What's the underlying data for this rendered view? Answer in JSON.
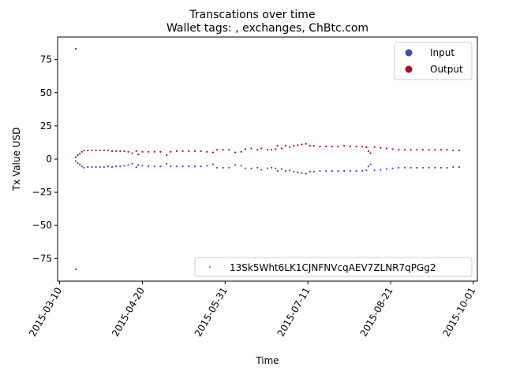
{
  "chart_data": {
    "type": "scatter",
    "title": "Transcations over time",
    "subtitle": "Wallet tags: , exchanges, ChBtc.com",
    "xlabel": "Time",
    "ylabel": "Tx Value USD",
    "xlim": [
      "2015-03-09",
      "2015-10-03"
    ],
    "ylim": [
      -92,
      92
    ],
    "x_ticks": [
      "2015-03-10",
      "2015-04-20",
      "2015-05-31",
      "2015-07-11",
      "2015-08-21",
      "2015-10-01"
    ],
    "y_ticks": [
      75,
      50,
      25,
      0,
      -25,
      -50,
      -75
    ],
    "y_tick_labels": [
      "75",
      "50",
      "25",
      "0",
      "−25",
      "−50",
      "−75"
    ],
    "grid": false,
    "legends": [
      {
        "placement": "top-right",
        "entries": [
          {
            "label": "Input",
            "color": "#3b4cc0"
          },
          {
            "label": "Output",
            "color": "#b40426"
          }
        ]
      },
      {
        "placement": "bottom-right",
        "entries": [
          {
            "label": "13Sk5Wht6LK1CJNFNVcqAEV7ZLNR7qPGg2",
            "color": "#1f9e89"
          }
        ]
      }
    ],
    "series": [
      {
        "name": "Output",
        "color": "#b40426",
        "points": [
          [
            "2015-03-18",
            83
          ],
          [
            "2015-03-18",
            1.5
          ],
          [
            "2015-03-19",
            3
          ],
          [
            "2015-03-20",
            4
          ],
          [
            "2015-03-21",
            5.5
          ],
          [
            "2015-03-22",
            6.5
          ],
          [
            "2015-03-24",
            6.5
          ],
          [
            "2015-03-26",
            6.5
          ],
          [
            "2015-03-28",
            6.5
          ],
          [
            "2015-03-30",
            6.5
          ],
          [
            "2015-04-01",
            6.5
          ],
          [
            "2015-04-03",
            6.5
          ],
          [
            "2015-04-05",
            6
          ],
          [
            "2015-04-07",
            6
          ],
          [
            "2015-04-09",
            6
          ],
          [
            "2015-04-11",
            6
          ],
          [
            "2015-04-13",
            5.5
          ],
          [
            "2015-04-15",
            4.5
          ],
          [
            "2015-04-17",
            6
          ],
          [
            "2015-04-18",
            3.5
          ],
          [
            "2015-04-20",
            5.5
          ],
          [
            "2015-04-23",
            5.5
          ],
          [
            "2015-04-26",
            5.5
          ],
          [
            "2015-04-29",
            5.5
          ],
          [
            "2015-05-02",
            3
          ],
          [
            "2015-05-04",
            5.5
          ],
          [
            "2015-05-07",
            6
          ],
          [
            "2015-05-10",
            6
          ],
          [
            "2015-05-13",
            6
          ],
          [
            "2015-05-16",
            6
          ],
          [
            "2015-05-19",
            6
          ],
          [
            "2015-05-22",
            5.5
          ],
          [
            "2015-05-25",
            5
          ],
          [
            "2015-05-27",
            7
          ],
          [
            "2015-05-30",
            7
          ],
          [
            "2015-06-02",
            7
          ],
          [
            "2015-06-05",
            5
          ],
          [
            "2015-06-08",
            5.5
          ],
          [
            "2015-06-10",
            7.5
          ],
          [
            "2015-06-13",
            8
          ],
          [
            "2015-06-16",
            7
          ],
          [
            "2015-06-18",
            8
          ],
          [
            "2015-06-21",
            7
          ],
          [
            "2015-06-23",
            7
          ],
          [
            "2015-06-25",
            7.5
          ],
          [
            "2015-06-26",
            10
          ],
          [
            "2015-06-28",
            8
          ],
          [
            "2015-06-30",
            10
          ],
          [
            "2015-07-02",
            9
          ],
          [
            "2015-07-04",
            10
          ],
          [
            "2015-07-06",
            10.5
          ],
          [
            "2015-07-08",
            11
          ],
          [
            "2015-07-10",
            11.5
          ],
          [
            "2015-07-12",
            10
          ],
          [
            "2015-07-14",
            10
          ],
          [
            "2015-07-17",
            9.5
          ],
          [
            "2015-07-20",
            9.5
          ],
          [
            "2015-07-23",
            9.5
          ],
          [
            "2015-07-26",
            9.5
          ],
          [
            "2015-07-29",
            10
          ],
          [
            "2015-08-01",
            9.5
          ],
          [
            "2015-08-04",
            9.5
          ],
          [
            "2015-08-07",
            9.5
          ],
          [
            "2015-08-09",
            9
          ],
          [
            "2015-08-10",
            6
          ],
          [
            "2015-08-11",
            4.5
          ],
          [
            "2015-08-13",
            9
          ],
          [
            "2015-08-16",
            8.5
          ],
          [
            "2015-08-19",
            8
          ],
          [
            "2015-08-22",
            7.5
          ],
          [
            "2015-08-25",
            7
          ],
          [
            "2015-08-28",
            7
          ],
          [
            "2015-08-31",
            7
          ],
          [
            "2015-09-03",
            7
          ],
          [
            "2015-09-06",
            7
          ],
          [
            "2015-09-09",
            7
          ],
          [
            "2015-09-12",
            7
          ],
          [
            "2015-09-15",
            7
          ],
          [
            "2015-09-18",
            7
          ],
          [
            "2015-09-21",
            6.5
          ],
          [
            "2015-09-24",
            6.5
          ]
        ]
      },
      {
        "name": "Input",
        "color": "#3b4cc0",
        "points": [
          [
            "2015-03-18",
            -83
          ],
          [
            "2015-03-18",
            -1.5
          ],
          [
            "2015-03-19",
            -3
          ],
          [
            "2015-03-20",
            -4
          ],
          [
            "2015-03-21",
            -5.5
          ],
          [
            "2015-03-22",
            -6.5
          ],
          [
            "2015-03-24",
            -6
          ],
          [
            "2015-03-26",
            -6
          ],
          [
            "2015-03-28",
            -6
          ],
          [
            "2015-03-30",
            -6
          ],
          [
            "2015-04-01",
            -6
          ],
          [
            "2015-04-03",
            -5.5
          ],
          [
            "2015-04-05",
            -6
          ],
          [
            "2015-04-07",
            -5.5
          ],
          [
            "2015-04-09",
            -5.5
          ],
          [
            "2015-04-11",
            -5
          ],
          [
            "2015-04-13",
            -4.5
          ],
          [
            "2015-04-15",
            -3.5
          ],
          [
            "2015-04-17",
            -6
          ],
          [
            "2015-04-18",
            -4.5
          ],
          [
            "2015-04-20",
            -5
          ],
          [
            "2015-04-23",
            -5.5
          ],
          [
            "2015-04-26",
            -5.5
          ],
          [
            "2015-04-29",
            -5.5
          ],
          [
            "2015-05-02",
            -3.5
          ],
          [
            "2015-05-04",
            -5.5
          ],
          [
            "2015-05-07",
            -5.5
          ],
          [
            "2015-05-10",
            -5.5
          ],
          [
            "2015-05-13",
            -5.5
          ],
          [
            "2015-05-16",
            -5.5
          ],
          [
            "2015-05-19",
            -5.5
          ],
          [
            "2015-05-22",
            -5
          ],
          [
            "2015-05-25",
            -4
          ],
          [
            "2015-05-27",
            -6.5
          ],
          [
            "2015-05-30",
            -6.5
          ],
          [
            "2015-06-02",
            -6.5
          ],
          [
            "2015-06-05",
            -4.5
          ],
          [
            "2015-06-08",
            -5
          ],
          [
            "2015-06-10",
            -7
          ],
          [
            "2015-06-13",
            -7
          ],
          [
            "2015-06-16",
            -6.5
          ],
          [
            "2015-06-18",
            -8
          ],
          [
            "2015-06-21",
            -7
          ],
          [
            "2015-06-23",
            -6.5
          ],
          [
            "2015-06-25",
            -7
          ],
          [
            "2015-06-26",
            -9
          ],
          [
            "2015-06-28",
            -7.5
          ],
          [
            "2015-06-30",
            -9
          ],
          [
            "2015-07-02",
            -8.5
          ],
          [
            "2015-07-04",
            -9.5
          ],
          [
            "2015-07-06",
            -10
          ],
          [
            "2015-07-08",
            -10.5
          ],
          [
            "2015-07-10",
            -11
          ],
          [
            "2015-07-12",
            -9.5
          ],
          [
            "2015-07-14",
            -9.5
          ],
          [
            "2015-07-17",
            -9
          ],
          [
            "2015-07-20",
            -9
          ],
          [
            "2015-07-23",
            -9
          ],
          [
            "2015-07-26",
            -9
          ],
          [
            "2015-07-29",
            -9
          ],
          [
            "2015-08-01",
            -9
          ],
          [
            "2015-08-04",
            -9
          ],
          [
            "2015-08-07",
            -9
          ],
          [
            "2015-08-09",
            -8.5
          ],
          [
            "2015-08-10",
            -5.5
          ],
          [
            "2015-08-11",
            -4
          ],
          [
            "2015-08-13",
            -8.5
          ],
          [
            "2015-08-16",
            -8
          ],
          [
            "2015-08-19",
            -7.5
          ],
          [
            "2015-08-22",
            -7
          ],
          [
            "2015-08-25",
            -6.5
          ],
          [
            "2015-08-28",
            -6.5
          ],
          [
            "2015-08-31",
            -6.5
          ],
          [
            "2015-09-03",
            -6.5
          ],
          [
            "2015-09-06",
            -6.5
          ],
          [
            "2015-09-09",
            -6.5
          ],
          [
            "2015-09-12",
            -6.5
          ],
          [
            "2015-09-15",
            -6.5
          ],
          [
            "2015-09-18",
            -6.5
          ],
          [
            "2015-09-21",
            -6
          ],
          [
            "2015-09-24",
            -6
          ]
        ]
      }
    ]
  }
}
